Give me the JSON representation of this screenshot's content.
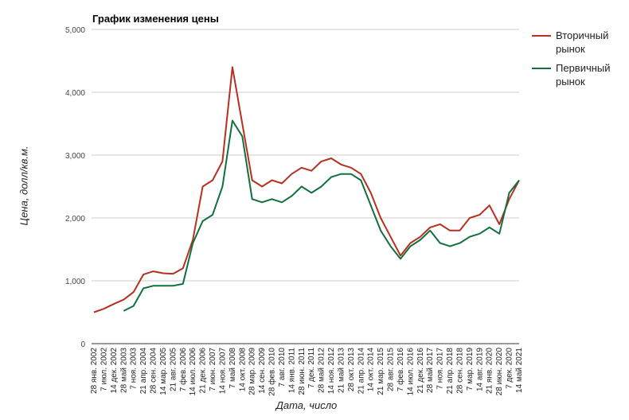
{
  "chart_data": {
    "type": "line",
    "title": "График изменения цены",
    "xlabel": "Дата, число",
    "ylabel": "Цена, долл/кв.м.",
    "ylim": [
      0,
      5000
    ],
    "yticks": [
      "0",
      "1,000",
      "2,000",
      "3,000",
      "4,000",
      "5,000"
    ],
    "grid": true,
    "legend_position": "right",
    "categories": [
      "28 янв. 2002",
      "7 июл. 2002",
      "14 дек. 2002",
      "28 май 2003",
      "7 ноя. 2003",
      "21 апр. 2004",
      "28 сен. 2004",
      "14 мар. 2005",
      "21 авг. 2005",
      "7 фев. 2006",
      "14 июл. 2006",
      "21 дек. 2006",
      "7 июн. 2007",
      "14 ноя. 2007",
      "7 май 2008",
      "14 окт. 2008",
      "28 мар. 2009",
      "14 сен. 2009",
      "28 фев. 2010",
      "7 авг. 2010",
      "14 янв. 2011",
      "28 июн. 2011",
      "7 дек. 2011",
      "28 май 2012",
      "14 ноя. 2012",
      "21 май 2013",
      "28 окт. 2013",
      "21 апр. 2014",
      "14 окт. 2014",
      "21 мар. 2015",
      "28 авг. 2015",
      "7 фев. 2016",
      "14 июл. 2016",
      "21 дек. 2016",
      "28 май 2017",
      "7 ноя. 2017",
      "21 апр. 2018",
      "28 сен. 2018",
      "7 мар. 2019",
      "14 авг. 2019",
      "21 янв. 2020",
      "28 июн. 2020",
      "7 дек. 2020",
      "14 май 2021"
    ],
    "series": [
      {
        "name": "Вторичный рынок",
        "color": "#b5301f",
        "values": [
          500,
          555,
          630,
          700,
          820,
          1100,
          1150,
          1120,
          1110,
          1200,
          1650,
          2500,
          2600,
          2900,
          4400,
          3500,
          2600,
          2500,
          2600,
          2550,
          2700,
          2800,
          2750,
          2900,
          2950,
          2850,
          2800,
          2700,
          2400,
          2000,
          1700,
          1400,
          1600,
          1700,
          1850,
          1900,
          1800,
          1800,
          2000,
          2050,
          2200,
          1900,
          2300,
          2600
        ]
      },
      {
        "name": "Первичный рынок",
        "color": "#127040",
        "values": [
          null,
          null,
          null,
          520,
          600,
          880,
          920,
          920,
          920,
          950,
          1600,
          1950,
          2050,
          2500,
          3550,
          3300,
          2300,
          2250,
          2300,
          2250,
          2350,
          2500,
          2400,
          2500,
          2650,
          2700,
          2700,
          2600,
          2200,
          1800,
          1550,
          1350,
          1550,
          1650,
          1800,
          1600,
          1550,
          1600,
          1700,
          1750,
          1850,
          1750,
          2400,
          2600
        ]
      }
    ]
  }
}
